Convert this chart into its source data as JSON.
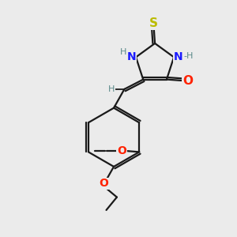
{
  "background_color": "#ebebeb",
  "bond_color": "#1a1a1a",
  "bond_width": 1.6,
  "figsize": [
    3.0,
    3.0
  ],
  "dpi": 100,
  "colors": {
    "N": "#1a1aff",
    "O": "#ff2200",
    "S": "#bbbb00",
    "H": "#5a8a8a",
    "C": "#1a1a1a"
  }
}
